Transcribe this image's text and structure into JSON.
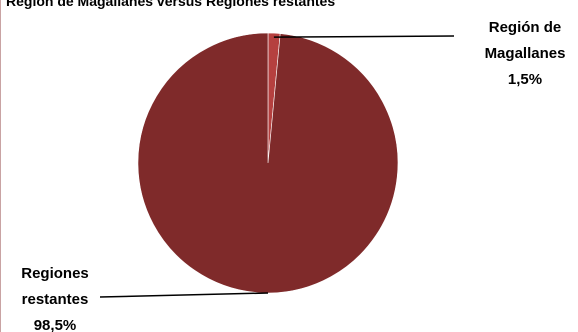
{
  "chart_data": {
    "type": "pie",
    "title": "Región de Magallanes versus Regiones restantes",
    "slices": [
      {
        "label_lines": [
          "Región de",
          "Magallanes"
        ],
        "value_label": "1,5%",
        "value": 1.5,
        "color": "#b5403f"
      },
      {
        "label_lines": [
          "Regiones",
          "restantes"
        ],
        "value_label": "98,5%",
        "value": 98.5,
        "color": "#7f2a2a"
      }
    ],
    "legend": "none",
    "label_placement": "outside-with-leader-lines"
  }
}
